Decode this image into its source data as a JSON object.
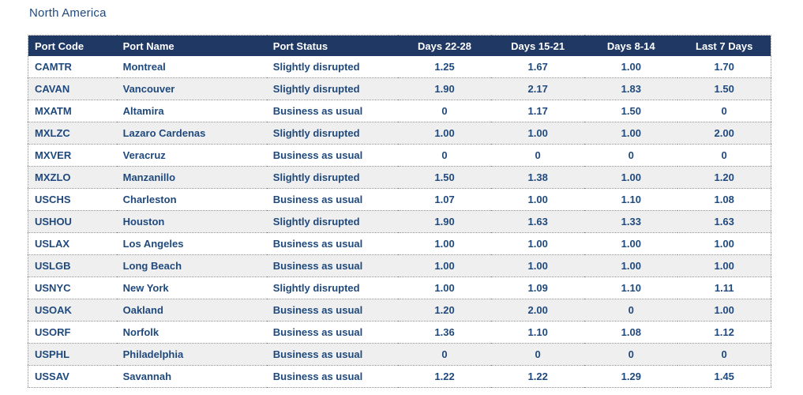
{
  "title": "North America",
  "colors": {
    "header_bg": "#1f3864",
    "header_text": "#ffffff",
    "cell_text": "#1f497d",
    "stripe_bg": "#efefef",
    "row_bg": "#ffffff",
    "divider": "#8c8c8c"
  },
  "table": {
    "columns": [
      {
        "key": "port-code",
        "label": "Port Code",
        "align": "left"
      },
      {
        "key": "port-name",
        "label": "Port Name",
        "align": "left"
      },
      {
        "key": "port-status",
        "label": "Port Status",
        "align": "left"
      },
      {
        "key": "days-22-28",
        "label": "Days 22-28",
        "align": "center"
      },
      {
        "key": "days-15-21",
        "label": "Days 15-21",
        "align": "center"
      },
      {
        "key": "days-8-14",
        "label": "Days 8-14",
        "align": "center"
      },
      {
        "key": "last-7-days",
        "label": "Last 7 Days",
        "align": "center"
      }
    ],
    "rows": [
      [
        "CAMTR",
        "Montreal",
        "Slightly disrupted",
        "1.25",
        "1.67",
        "1.00",
        "1.70"
      ],
      [
        "CAVAN",
        "Vancouver",
        "Slightly disrupted",
        "1.90",
        "2.17",
        "1.83",
        "1.50"
      ],
      [
        "MXATM",
        "Altamira",
        "Business as usual",
        "0",
        "1.17",
        "1.50",
        "0"
      ],
      [
        "MXLZC",
        "Lazaro Cardenas",
        "Slightly disrupted",
        "1.00",
        "1.00",
        "1.00",
        "2.00"
      ],
      [
        "MXVER",
        "Veracruz",
        "Business as usual",
        "0",
        "0",
        "0",
        "0"
      ],
      [
        "MXZLO",
        "Manzanillo",
        "Slightly disrupted",
        "1.50",
        "1.38",
        "1.00",
        "1.20"
      ],
      [
        "USCHS",
        "Charleston",
        "Business as usual",
        "1.07",
        "1.00",
        "1.10",
        "1.08"
      ],
      [
        "USHOU",
        "Houston",
        "Slightly disrupted",
        "1.90",
        "1.63",
        "1.33",
        "1.63"
      ],
      [
        "USLAX",
        "Los Angeles",
        "Business as usual",
        "1.00",
        "1.00",
        "1.00",
        "1.00"
      ],
      [
        "USLGB",
        "Long Beach",
        "Business as usual",
        "1.00",
        "1.00",
        "1.00",
        "1.00"
      ],
      [
        "USNYC",
        "New York",
        "Slightly disrupted",
        "1.00",
        "1.09",
        "1.10",
        "1.11"
      ],
      [
        "USOAK",
        "Oakland",
        "Business as usual",
        "1.20",
        "2.00",
        "0",
        "1.00"
      ],
      [
        "USORF",
        "Norfolk",
        "Business as usual",
        "1.36",
        "1.10",
        "1.08",
        "1.12"
      ],
      [
        "USPHL",
        "Philadelphia",
        "Business as usual",
        "0",
        "0",
        "0",
        "0"
      ],
      [
        "USSAV",
        "Savannah",
        "Business as usual",
        "1.22",
        "1.22",
        "1.29",
        "1.45"
      ]
    ]
  }
}
